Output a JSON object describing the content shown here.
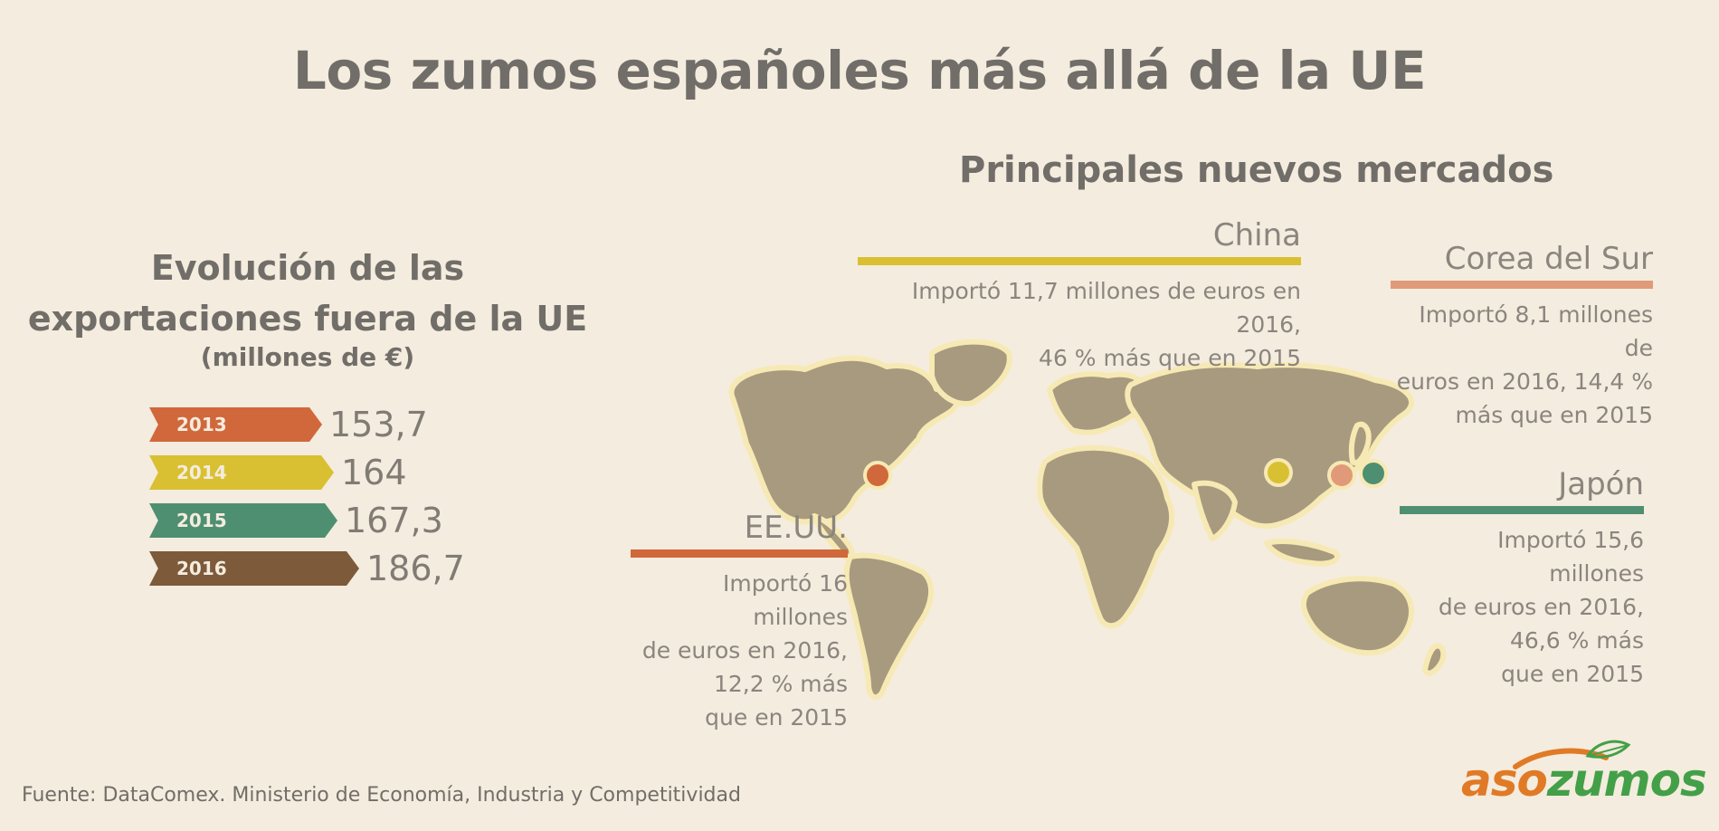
{
  "title": "Los zumos españoles más allá de la UE",
  "left": {
    "title_line1": "Evolución de las",
    "title_line2": "exportaciones fuera de la UE",
    "subtitle": "(millones de €)"
  },
  "chart_data": {
    "type": "bar",
    "categories": [
      "2013",
      "2014",
      "2015",
      "2016"
    ],
    "values": [
      153.7,
      164,
      167.3,
      186.7
    ],
    "value_labels": [
      "153,7",
      "164",
      "167,3",
      "186,7"
    ],
    "colors": [
      "#d0683c",
      "#d9c032",
      "#4e8f72",
      "#7d5a3a"
    ],
    "title": "Evolución de las exportaciones fuera de la UE",
    "ylabel": "(millones de €)"
  },
  "right": {
    "title": "Principales nuevos mercados",
    "markets": [
      {
        "name": "China",
        "desc_line1": "Importó 11,7 millones de euros en 2016,",
        "desc_line2": "46 % más que en 2015",
        "desc_line3": "",
        "desc_line4": "",
        "color": "#d9c032"
      },
      {
        "name": "Corea del Sur",
        "desc_line1": "Importó 8,1 millones de",
        "desc_line2": "euros en 2016, 14,4 %",
        "desc_line3": "más que en 2015",
        "desc_line4": "",
        "color": "#e09a7a"
      },
      {
        "name": "Japón",
        "desc_line1": "Importó 15,6 millones",
        "desc_line2": "de euros en 2016,",
        "desc_line3": "46,6 % más",
        "desc_line4": "que en 2015",
        "color": "#4e8f72"
      },
      {
        "name": "EE.UU.",
        "desc_line1": "Importó 16 millones",
        "desc_line2": "de euros en 2016,",
        "desc_line3": "12,2 % más",
        "desc_line4": "que en 2015",
        "color": "#d0683c"
      }
    ]
  },
  "map": {
    "land_color": "#a89a7e",
    "outline_color": "#f7e9b4"
  },
  "source": "Fuente: DataComex. Ministerio de Economía, Industria y Competitividad",
  "logo": {
    "part1": "aso",
    "part2": "zumos",
    "color1": "#e07a26",
    "color2": "#43a048"
  }
}
